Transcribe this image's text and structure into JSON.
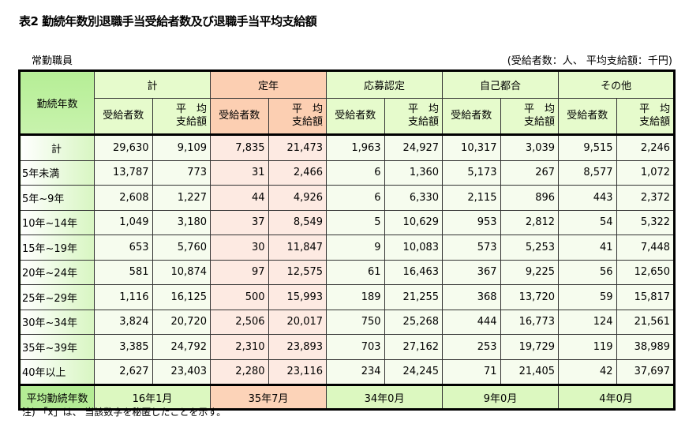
{
  "title": "表2 勤続年数別退職手当受給者数及び退職手当平均支給額",
  "subtitle": "常勤職員",
  "unit_note": "(受給者数：人、 平均支給額：千円)",
  "table": {
    "row_header": "勤続年数",
    "groups": [
      "計",
      "定年",
      "応募認定",
      "自己都合",
      "その他"
    ],
    "sub_headers": [
      "受給者数",
      "平　均\n支給額"
    ],
    "rows": [
      {
        "label": "計",
        "values": [
          "29,630",
          "9,109",
          "7,835",
          "21,473",
          "1,963",
          "24,927",
          "10,317",
          "3,039",
          "9,515",
          "2,246"
        ]
      },
      {
        "label": "5年未満",
        "values": [
          "13,787",
          "773",
          "31",
          "2,466",
          "6",
          "1,360",
          "5,173",
          "267",
          "8,577",
          "1,072"
        ]
      },
      {
        "label": "5年~9年",
        "values": [
          "2,608",
          "1,227",
          "44",
          "4,926",
          "6",
          "6,330",
          "2,115",
          "896",
          "443",
          "2,372"
        ]
      },
      {
        "label": "10年~14年",
        "values": [
          "1,049",
          "3,180",
          "37",
          "8,549",
          "5",
          "10,629",
          "953",
          "2,812",
          "54",
          "5,322"
        ]
      },
      {
        "label": "15年~19年",
        "values": [
          "653",
          "5,760",
          "30",
          "11,847",
          "9",
          "10,083",
          "573",
          "5,253",
          "41",
          "7,448"
        ]
      },
      {
        "label": "20年~24年",
        "values": [
          "581",
          "10,874",
          "97",
          "12,575",
          "61",
          "16,463",
          "367",
          "9,225",
          "56",
          "12,650"
        ]
      },
      {
        "label": "25年~29年",
        "values": [
          "1,116",
          "16,125",
          "500",
          "15,993",
          "189",
          "21,255",
          "368",
          "13,720",
          "59",
          "15,817"
        ]
      },
      {
        "label": "30年~34年",
        "values": [
          "3,824",
          "20,720",
          "2,506",
          "20,017",
          "750",
          "25,268",
          "444",
          "16,773",
          "124",
          "21,561"
        ]
      },
      {
        "label": "35年~39年",
        "values": [
          "3,385",
          "24,792",
          "2,310",
          "23,893",
          "703",
          "27,162",
          "253",
          "19,729",
          "119",
          "38,989"
        ]
      },
      {
        "label": "40年以上",
        "values": [
          "2,627",
          "23,403",
          "2,280",
          "23,116",
          "234",
          "24,245",
          "71",
          "21,405",
          "42",
          "37,697"
        ]
      }
    ],
    "summary": {
      "label": "平均勤続年数",
      "values": [
        "16年1月",
        "35年7月",
        "34年0月",
        "9年0月",
        "4年0月"
      ]
    }
  },
  "footnote": "注) 「x」は、 当該数字を秘匿したことを示す。",
  "colors": {
    "label_green": "#b6ee96",
    "header_green": "#e6fbcc",
    "teinen_header": "#fccfb2",
    "teinen_cell": "#fdeae2"
  }
}
